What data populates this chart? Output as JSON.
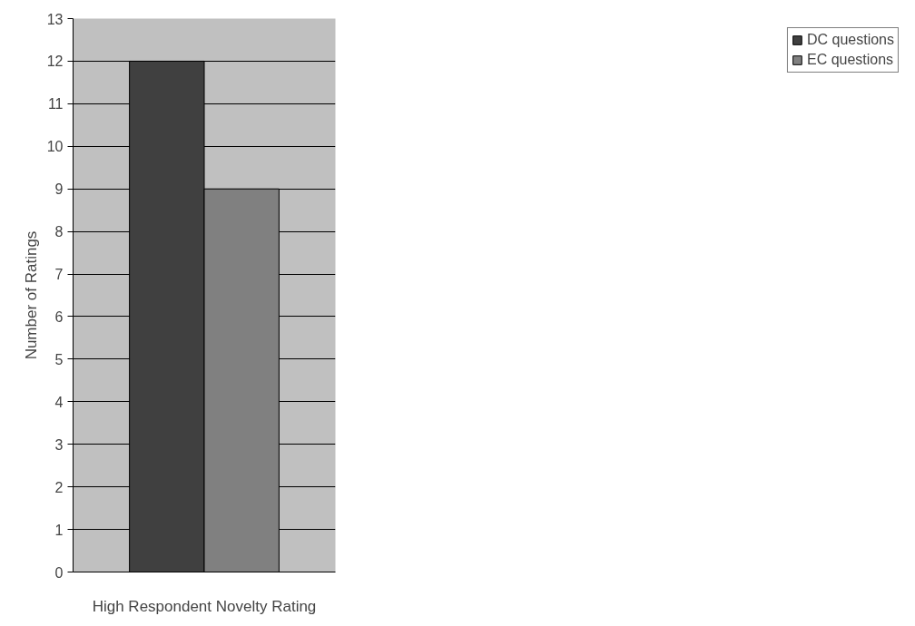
{
  "chart_data": {
    "type": "bar",
    "ylabel": "Number of Ratings",
    "categories": [
      "High Respondent Novelty Rating"
    ],
    "series": [
      {
        "name": "DC questions",
        "color": "#404040",
        "values": [
          12
        ]
      },
      {
        "name": "EC questions",
        "color": "#808080",
        "values": [
          9
        ]
      }
    ],
    "ylim": [
      0,
      13
    ],
    "yticks": [
      0,
      1,
      2,
      3,
      4,
      5,
      6,
      7,
      8,
      9,
      10,
      11,
      12,
      13
    ],
    "grid": "y",
    "legend": "right"
  }
}
